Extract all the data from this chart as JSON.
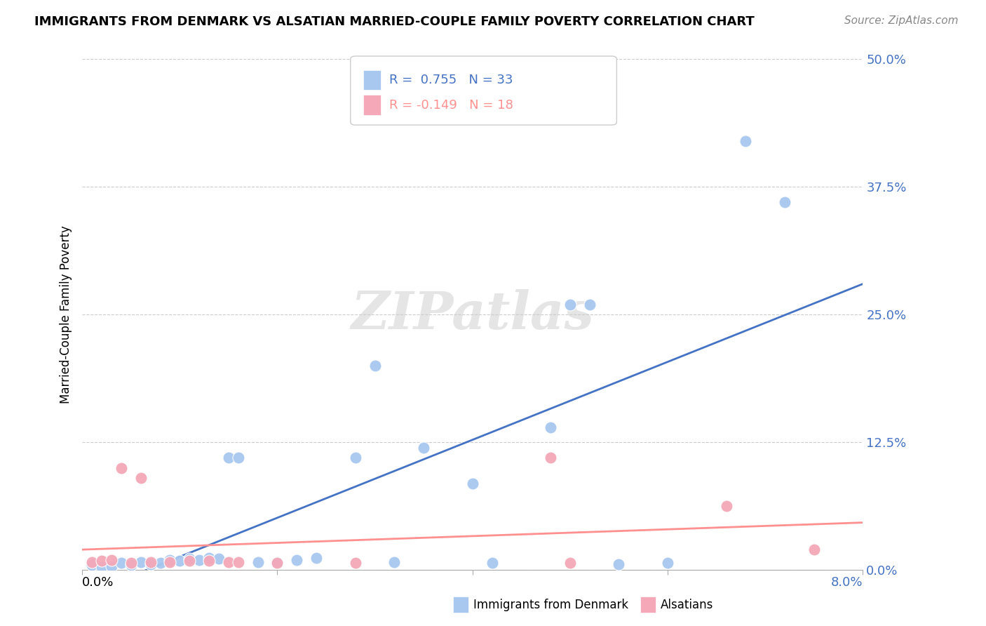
{
  "title": "IMMIGRANTS FROM DENMARK VS ALSATIAN MARRIED-COUPLE FAMILY POVERTY CORRELATION CHART",
  "source": "Source: ZipAtlas.com",
  "ylabel": "Married-Couple Family Poverty",
  "ytick_labels": [
    "0.0%",
    "12.5%",
    "25.0%",
    "37.5%",
    "50.0%"
  ],
  "ytick_values": [
    0.0,
    0.125,
    0.25,
    0.375,
    0.5
  ],
  "xlim": [
    0.0,
    0.08
  ],
  "ylim": [
    0.0,
    0.5
  ],
  "blue_color": "#A8C8F0",
  "pink_color": "#F4A8B8",
  "line_blue": "#4472C4",
  "line_pink": "#FF9090",
  "blue_scatter_x": [
    0.001,
    0.002,
    0.003,
    0.004,
    0.005,
    0.006,
    0.007,
    0.008,
    0.009,
    0.01,
    0.011,
    0.012,
    0.013,
    0.014,
    0.015,
    0.016,
    0.018,
    0.02,
    0.022,
    0.024,
    0.028,
    0.03,
    0.032,
    0.035,
    0.04,
    0.042,
    0.048,
    0.05,
    0.052,
    0.055,
    0.06,
    0.068,
    0.072
  ],
  "blue_scatter_y": [
    0.005,
    0.003,
    0.004,
    0.007,
    0.005,
    0.008,
    0.006,
    0.007,
    0.01,
    0.009,
    0.011,
    0.01,
    0.012,
    0.011,
    0.11,
    0.11,
    0.008,
    0.008,
    0.01,
    0.012,
    0.11,
    0.2,
    0.008,
    0.12,
    0.085,
    0.007,
    0.14,
    0.26,
    0.26,
    0.006,
    0.007,
    0.42,
    0.36
  ],
  "pink_scatter_x": [
    0.001,
    0.002,
    0.003,
    0.004,
    0.005,
    0.006,
    0.007,
    0.009,
    0.011,
    0.013,
    0.015,
    0.016,
    0.02,
    0.028,
    0.048,
    0.05,
    0.066,
    0.075
  ],
  "pink_scatter_y": [
    0.008,
    0.009,
    0.01,
    0.1,
    0.007,
    0.09,
    0.008,
    0.008,
    0.009,
    0.009,
    0.008,
    0.008,
    0.007,
    0.007,
    0.11,
    0.007,
    0.063,
    0.02
  ],
  "watermark": "ZIPatlas",
  "background_color": "#FFFFFF",
  "grid_color": "#CCCCCC",
  "legend_blue_text": "R =  0.755   N = 33",
  "legend_pink_text": "R = -0.149   N = 18",
  "bottom_legend_blue": "Immigrants from Denmark",
  "bottom_legend_pink": "Alsatians"
}
